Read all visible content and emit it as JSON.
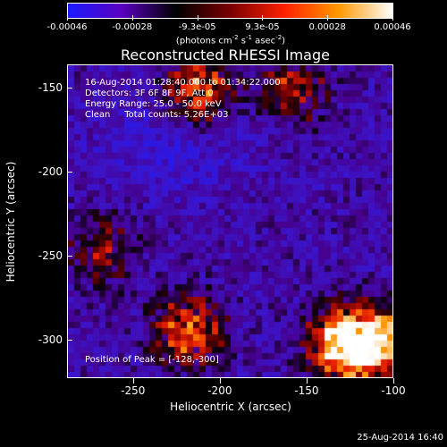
{
  "colorbar": {
    "labels": [
      "-0.00046",
      "-0.00028",
      "-9.3e-05",
      "9.3e-05",
      "0.00028",
      "0.00046"
    ],
    "units": "(photons cm^-2 s^-1 asec^-2)",
    "colors": [
      "#1b1bff",
      "#5a00c0",
      "#000000",
      "#7a0000",
      "#ff2000",
      "#ff9900",
      "#ffffff"
    ]
  },
  "plot": {
    "title": "Reconstructed RHESSI Image",
    "info_lines": [
      "16-Aug-2014 01:28:40.000 to 01:34:22.000",
      "Detectors: 3F 6F 8F 9F, Att 0",
      "Energy Range: 25.0 - 50.0 keV",
      "Clean     Total counts: 5.26E+03"
    ],
    "peak_label": "Position of Peak = [-128,-300]"
  },
  "axes": {
    "xlabel": "Heliocentric X (arcsec)",
    "ylabel": "Heliocentric Y (arcsec)",
    "xticks": [
      "-250",
      "-200",
      "-150",
      "-100"
    ],
    "yticks": [
      "-150",
      "-200",
      "-250",
      "-300"
    ]
  },
  "chart_data": {
    "type": "heatmap",
    "title": "Reconstructed RHESSI Image",
    "xlabel": "Heliocentric X (arcsec)",
    "ylabel": "Heliocentric Y (arcsec)",
    "xlim": [
      -288,
      -100
    ],
    "ylim": [
      -323,
      -136
    ],
    "zlim": [
      -0.00046,
      0.00046
    ],
    "peak": [
      -128,
      -300
    ],
    "bright_regions": [
      {
        "x": -215,
        "y": -148,
        "level": 0.6
      },
      {
        "x": -160,
        "y": -148,
        "level": 0.4
      },
      {
        "x": -130,
        "y": -300,
        "level": 1.0
      },
      {
        "x": -110,
        "y": -300,
        "level": 0.7
      },
      {
        "x": -220,
        "y": -292,
        "level": 0.6
      },
      {
        "x": -270,
        "y": -245,
        "level": 0.35
      }
    ]
  },
  "footer": {
    "timestamp": "25-Aug-2014 16:40"
  }
}
